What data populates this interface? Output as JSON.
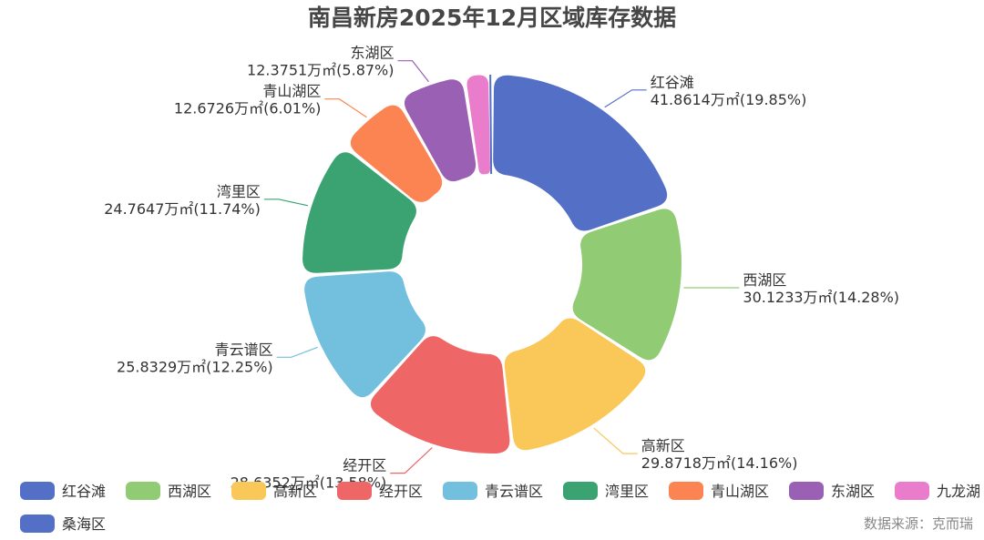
{
  "chart_data": {
    "type": "pie",
    "variant": "donut",
    "title": "南昌新房2025年12月区域库存数据",
    "unit": "万㎡",
    "source": "数据来源：克而瑞",
    "legend_position": "bottom",
    "slices": [
      {
        "name": "红谷滩",
        "value": 41.8614,
        "value_text": "41.8614万㎡",
        "percent_text": "19.85%",
        "color": "#5470c6"
      },
      {
        "name": "西湖区",
        "value": 30.1233,
        "value_text": "30.1233万㎡",
        "percent_text": "14.28%",
        "color": "#91cc75"
      },
      {
        "name": "高新区",
        "value": 29.8718,
        "value_text": "29.8718万㎡",
        "percent_text": "14.16%",
        "color": "#fac858"
      },
      {
        "name": "经开区",
        "value": 28.6352,
        "value_text": "28.6352万㎡",
        "percent_text": "13.58%",
        "color": "#ee6666"
      },
      {
        "name": "青云谱区",
        "value": 25.8329,
        "value_text": "25.8329万㎡",
        "percent_text": "12.25%",
        "color": "#73c0de"
      },
      {
        "name": "湾里区",
        "value": 24.7647,
        "value_text": "24.7647万㎡",
        "percent_text": "11.74%",
        "color": "#3ba272"
      },
      {
        "name": "青山湖区",
        "value": 12.6726,
        "value_text": "12.6726万㎡",
        "percent_text": "6.01%",
        "color": "#fc8452"
      },
      {
        "name": "东湖区",
        "value": 12.3751,
        "value_text": "12.3751万㎡",
        "percent_text": "5.87%",
        "color": "#9a60b4"
      },
      {
        "name": "九龙湖",
        "value": 4.73,
        "color": "#ea7ccc"
      },
      {
        "name": "桑海区",
        "value": 0.3,
        "color": "#5470c6"
      }
    ]
  }
}
